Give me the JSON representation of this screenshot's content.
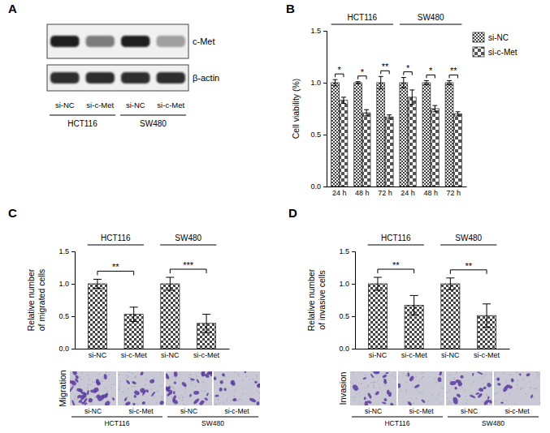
{
  "blot": {
    "panel": "A",
    "bands": [
      "c-Met",
      "β-actin"
    ],
    "lanes": [
      "si-NC",
      "si-c-Met",
      "si-NC",
      "si-c-Met"
    ],
    "groups": [
      "HCT116",
      "SW480"
    ]
  },
  "chart_data": [
    {
      "panel": "B",
      "type": "bar",
      "y_label": "Cell viability (%)",
      "categories": [
        "24 h",
        "48 h",
        "72 h",
        "24 h",
        "48 h",
        "72 h"
      ],
      "groups": [
        "HCT116",
        "SW480"
      ],
      "series": [
        {
          "name": "si-NC",
          "color": "#444444",
          "values": [
            1.0,
            1.0,
            1.0,
            1.0,
            1.0,
            1.0
          ],
          "errors": [
            0.03,
            0.01,
            0.06,
            0.05,
            0.02,
            0.02
          ]
        },
        {
          "name": "si-c-Met",
          "color": "#555555",
          "values": [
            0.83,
            0.71,
            0.67,
            0.86,
            0.75,
            0.7
          ],
          "errors": [
            0.03,
            0.03,
            0.02,
            0.07,
            0.03,
            0.02
          ]
        }
      ],
      "significance": [
        "*",
        "*",
        "**",
        "*",
        "*",
        "**"
      ],
      "ylim": [
        0,
        1.5
      ],
      "yticks": [
        {
          "value": 0,
          "label": "0.0"
        },
        {
          "value": 0.5,
          "label": "0.5"
        },
        {
          "value": 1,
          "label": "1.0"
        },
        {
          "value": 1.5,
          "label": "1.5"
        }
      ],
      "legend": "right"
    },
    {
      "panel": "C",
      "type": "bar",
      "y_label": [
        "Relative number",
        "of migrated cells"
      ],
      "categories": [
        "si-NC",
        "si-c-Met",
        "si-NC",
        "si-c-Met"
      ],
      "groups": [
        "HCT116",
        "SW480"
      ],
      "series": [
        {
          "color": "#444444",
          "values": [
            1.0,
            0.53,
            1.0,
            0.39
          ],
          "errors": [
            0.07,
            0.11,
            0.1,
            0.14
          ]
        }
      ],
      "significance": [
        "**",
        "***"
      ],
      "ylim": [
        0,
        1.5
      ],
      "yticks": [
        {
          "value": 0,
          "label": "0.0"
        },
        {
          "value": 0.5,
          "label": "0.5"
        },
        {
          "value": 1,
          "label": "1.0"
        },
        {
          "value": 1.5,
          "label": "1.5"
        }
      ],
      "images": {
        "title": "Migration",
        "captions": [
          "si-NC",
          "si-c-Met",
          "si-NC",
          "si-c-Met"
        ],
        "groups": [
          "HCT116",
          "SW480"
        ]
      }
    },
    {
      "panel": "D",
      "type": "bar",
      "y_label": [
        "Relative number",
        "of invasive cells"
      ],
      "categories": [
        "si-NC",
        "si-c-Met",
        "si-NC",
        "si-c-Met"
      ],
      "groups": [
        "HCT116",
        "SW480"
      ],
      "series": [
        {
          "color": "#444444",
          "values": [
            1.0,
            0.67,
            1.0,
            0.51
          ],
          "errors": [
            0.1,
            0.15,
            0.09,
            0.18
          ]
        }
      ],
      "significance": [
        "**",
        "**"
      ],
      "ylim": [
        0,
        1.5
      ],
      "yticks": [
        {
          "value": 0,
          "label": "0.0"
        },
        {
          "value": 0.5,
          "label": "0.5"
        },
        {
          "value": 1,
          "label": "1.0"
        },
        {
          "value": 1.5,
          "label": "1.5"
        }
      ],
      "images": {
        "title": "Invasion",
        "captions": [
          "si-NC",
          "si-c-Met",
          "si-NC",
          "si-c-Met"
        ],
        "groups": [
          "HCT116",
          "SW480"
        ]
      }
    }
  ]
}
